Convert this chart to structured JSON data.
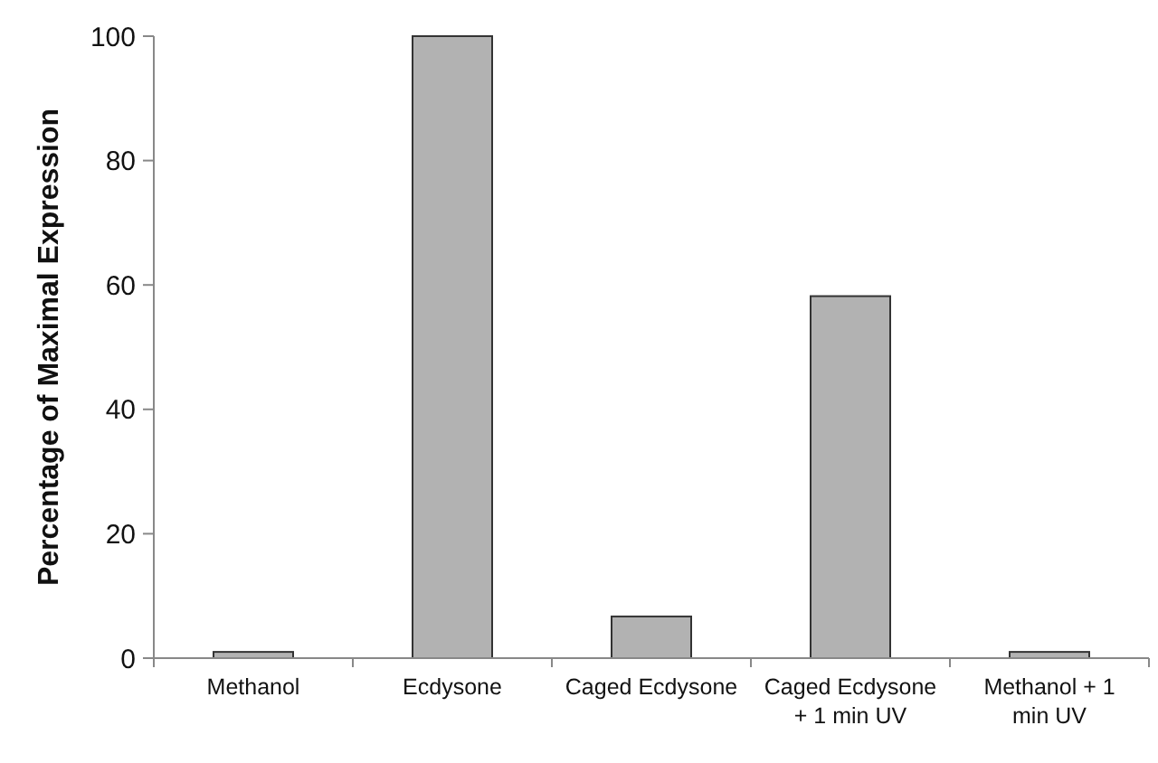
{
  "chart_data": {
    "type": "bar",
    "ylabel": "Percentage of Maximal Expression",
    "categories": [
      "Methanol",
      "Ecdysone",
      "Caged Ecdysone",
      "Caged Ecdysone + 1 min UV",
      "Methanol + 1 min UV"
    ],
    "values": [
      1,
      100,
      6.7,
      58.2,
      1
    ],
    "color": "#b2b2b2",
    "ylim": [
      0,
      100
    ],
    "yticks": [
      0,
      20,
      40,
      60,
      80,
      100
    ],
    "grid": false
  }
}
